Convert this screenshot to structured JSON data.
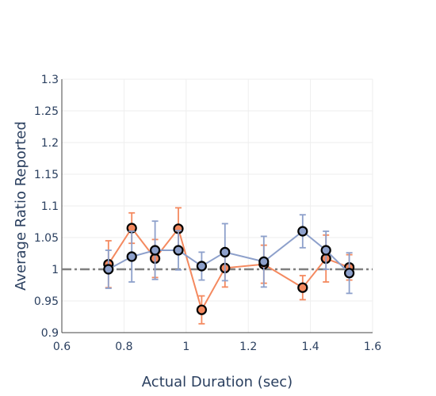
{
  "chart_data": {
    "type": "line",
    "xlabel": "Actual Duration (sec)",
    "ylabel": "Average Ratio Reported",
    "xlim": [
      0.6,
      1.6
    ],
    "ylim": [
      0.9,
      1.3
    ],
    "x_ticks": [
      0.6,
      0.8,
      1.0,
      1.2,
      1.4,
      1.6
    ],
    "x_tick_labels": [
      "0.6",
      "0.8",
      "1",
      "1.2",
      "1.4",
      "1.6"
    ],
    "y_ticks": [
      0.9,
      0.95,
      1.0,
      1.05,
      1.1,
      1.15,
      1.2,
      1.25,
      1.3
    ],
    "y_tick_labels": [
      "0.9",
      "0.95",
      "1",
      "1.05",
      "1.1",
      "1.15",
      "1.2",
      "1.25",
      "1.3"
    ],
    "grid": true,
    "reference_line": {
      "y": 1.0,
      "style": "dash-dot",
      "color": "#7f7f7f"
    },
    "series": [
      {
        "color": "#f4895f",
        "points": [
          {
            "x": 0.75,
            "y": 1.008,
            "err": 0.037
          },
          {
            "x": 0.825,
            "y": 1.065,
            "err": 0.024
          },
          {
            "x": 0.9,
            "y": 1.017,
            "err": 0.03
          },
          {
            "x": 0.975,
            "y": 1.064,
            "err": 0.033
          },
          {
            "x": 1.05,
            "y": 0.936,
            "err": 0.022
          },
          {
            "x": 1.125,
            "y": 1.002,
            "err": 0.03
          },
          {
            "x": 1.25,
            "y": 1.008,
            "err": 0.03
          },
          {
            "x": 1.375,
            "y": 0.971,
            "err": 0.019
          },
          {
            "x": 1.45,
            "y": 1.017,
            "err": 0.037
          },
          {
            "x": 1.525,
            "y": 1.003,
            "err": 0.02
          }
        ]
      },
      {
        "color": "#8da0cb",
        "points": [
          {
            "x": 0.75,
            "y": 1.0,
            "err": 0.03
          },
          {
            "x": 0.825,
            "y": 1.02,
            "err": 0.04
          },
          {
            "x": 0.9,
            "y": 1.03,
            "err": 0.046
          },
          {
            "x": 0.975,
            "y": 1.03,
            "err": 0.031
          },
          {
            "x": 1.05,
            "y": 1.005,
            "err": 0.022
          },
          {
            "x": 1.125,
            "y": 1.027,
            "err": 0.045
          },
          {
            "x": 1.25,
            "y": 1.012,
            "err": 0.04
          },
          {
            "x": 1.375,
            "y": 1.06,
            "err": 0.026
          },
          {
            "x": 1.45,
            "y": 1.03,
            "err": 0.03
          },
          {
            "x": 1.525,
            "y": 0.994,
            "err": 0.032
          }
        ]
      }
    ]
  }
}
